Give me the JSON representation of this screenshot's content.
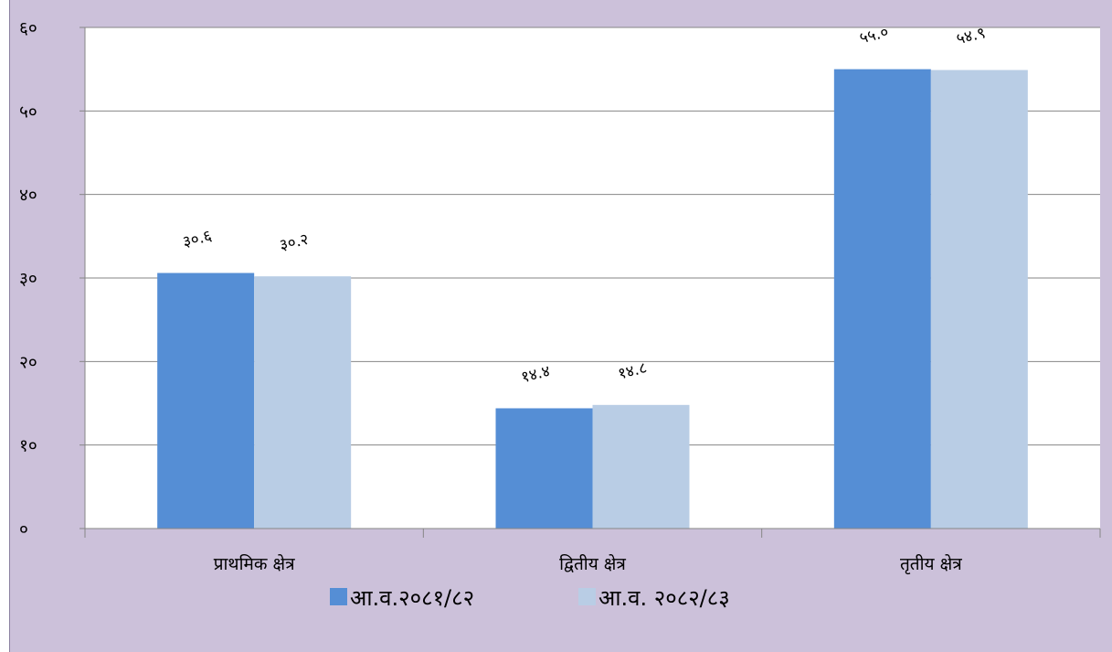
{
  "chart_data": {
    "type": "bar",
    "title": "",
    "xlabel": "",
    "ylabel": "",
    "categories": [
      "प्राथमिक क्षेत्र",
      "द्वितीय क्षेत्र",
      "तृतीय क्षेत्र"
    ],
    "series": [
      {
        "name": "आ.व.२०८१/८२",
        "color": "#558ed5",
        "values": [
          30.6,
          14.4,
          55.0
        ],
        "labels": [
          "३०.६",
          "१४.४",
          "५५.०"
        ]
      },
      {
        "name": "आ.व. २०८२/८३",
        "color": "#b9cde5",
        "values": [
          30.2,
          14.8,
          54.9
        ],
        "labels": [
          "३०.२",
          "१४.८",
          "५४.९"
        ]
      }
    ],
    "ylim": [
      0,
      60
    ],
    "yticks": [
      0,
      10,
      20,
      30,
      40,
      50,
      60
    ],
    "ytick_labels": [
      "०",
      "१०",
      "२०",
      "३०",
      "४०",
      "५०",
      "६०"
    ],
    "grid": true,
    "legend_position": "bottom",
    "colors": {
      "background": "#ccc1da",
      "plot_area": "#ffffff",
      "gridline": "#868686"
    }
  }
}
